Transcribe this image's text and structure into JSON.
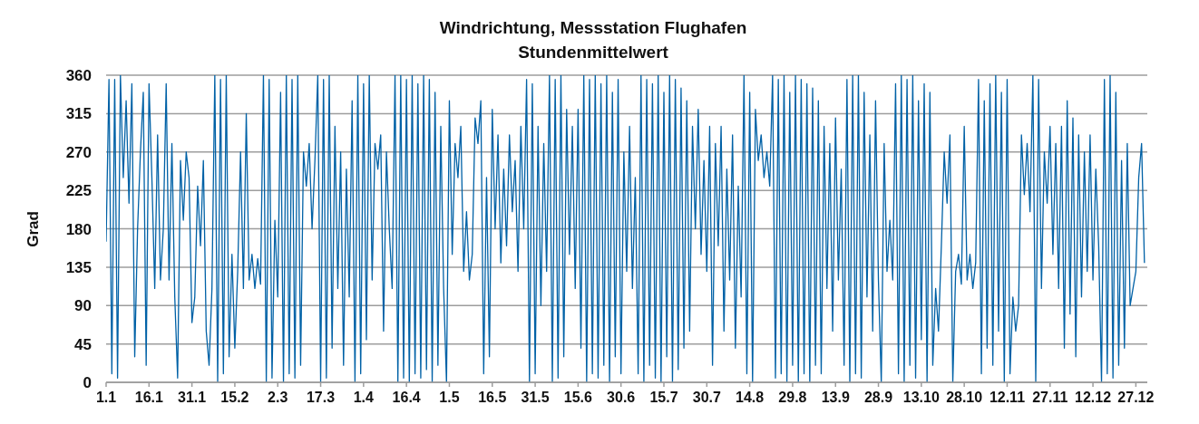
{
  "chart_data": {
    "type": "line",
    "title": "Windrichtung, Messstation Flughafen",
    "subtitle": "Stundenmittelwert",
    "ylabel": "Grad",
    "x": [
      "--01-01",
      "--01-02",
      "--01-03",
      "--01-04",
      "--01-05",
      "--01-06",
      "--01-07",
      "--01-08",
      "--01-09",
      "--01-10",
      "--01-11",
      "--01-12",
      "--01-13",
      "--01-14",
      "--01-15",
      "--01-16",
      "--01-17",
      "--01-18",
      "--01-19",
      "--01-20",
      "--01-21",
      "--01-22",
      "--01-23",
      "--01-24",
      "--01-25",
      "--01-26",
      "--01-27",
      "--01-28",
      "--01-29",
      "--01-30",
      "--01-31",
      "--02-01",
      "--02-02",
      "--02-03",
      "--02-04",
      "--02-05",
      "--02-06",
      "--02-07",
      "--02-08",
      "--02-09",
      "--02-10",
      "--02-11",
      "--02-12",
      "--02-13",
      "--02-14",
      "--02-15",
      "--02-16",
      "--02-17",
      "--02-18",
      "--02-19",
      "--02-20",
      "--02-21",
      "--02-22",
      "--02-23",
      "--02-24",
      "--02-25",
      "--02-26",
      "--02-27",
      "--02-28",
      "--03-01",
      "--03-02",
      "--03-03",
      "--03-04",
      "--03-05",
      "--03-06",
      "--03-07",
      "--03-08",
      "--03-09",
      "--03-10",
      "--03-11",
      "--03-12",
      "--03-13",
      "--03-14",
      "--03-15",
      "--03-16",
      "--03-17",
      "--03-18",
      "--03-19",
      "--03-20",
      "--03-21",
      "--03-22",
      "--03-23",
      "--03-24",
      "--03-25",
      "--03-26",
      "--03-27",
      "--03-28",
      "--03-29",
      "--03-30",
      "--03-31",
      "--04-01",
      "--04-02",
      "--04-03",
      "--04-04",
      "--04-05",
      "--04-06",
      "--04-07",
      "--04-08",
      "--04-09",
      "--04-10",
      "--04-11",
      "--04-12",
      "--04-13",
      "--04-14",
      "--04-15",
      "--04-16",
      "--04-17",
      "--04-18",
      "--04-19",
      "--04-20",
      "--04-21",
      "--04-22",
      "--04-23",
      "--04-24",
      "--04-25",
      "--04-26",
      "--04-27",
      "--04-28",
      "--04-29",
      "--04-30",
      "--05-01",
      "--05-02",
      "--05-03",
      "--05-04",
      "--05-05",
      "--05-06",
      "--05-07",
      "--05-08",
      "--05-09",
      "--05-10",
      "--05-11",
      "--05-12",
      "--05-13",
      "--05-14",
      "--05-15",
      "--05-16",
      "--05-17",
      "--05-18",
      "--05-19",
      "--05-20",
      "--05-21",
      "--05-22",
      "--05-23",
      "--05-24",
      "--05-25",
      "--05-26",
      "--05-27",
      "--05-28",
      "--05-29",
      "--05-30",
      "--05-31",
      "--06-01",
      "--06-02",
      "--06-03",
      "--06-04",
      "--06-05",
      "--06-06",
      "--06-07",
      "--06-08",
      "--06-09",
      "--06-10",
      "--06-11",
      "--06-12",
      "--06-13",
      "--06-14",
      "--06-15",
      "--06-16",
      "--06-17",
      "--06-18",
      "--06-19",
      "--06-20",
      "--06-21",
      "--06-22",
      "--06-23",
      "--06-24",
      "--06-25",
      "--06-26",
      "--06-27",
      "--06-28",
      "--06-29",
      "--06-30",
      "--07-01",
      "--07-02",
      "--07-03",
      "--07-04",
      "--07-05",
      "--07-06",
      "--07-07",
      "--07-08",
      "--07-09",
      "--07-10",
      "--07-11",
      "--07-12",
      "--07-13",
      "--07-14",
      "--07-15",
      "--07-16",
      "--07-17",
      "--07-18",
      "--07-19",
      "--07-20",
      "--07-21",
      "--07-22",
      "--07-23",
      "--07-24",
      "--07-25",
      "--07-26",
      "--07-27",
      "--07-28",
      "--07-29",
      "--07-30",
      "--07-31",
      "--08-01",
      "--08-02",
      "--08-03",
      "--08-04",
      "--08-05",
      "--08-06",
      "--08-07",
      "--08-08",
      "--08-09",
      "--08-10",
      "--08-11",
      "--08-12",
      "--08-13",
      "--08-14",
      "--08-15",
      "--08-16",
      "--08-17",
      "--08-18",
      "--08-19",
      "--08-20",
      "--08-21",
      "--08-22",
      "--08-23",
      "--08-24",
      "--08-25",
      "--08-26",
      "--08-27",
      "--08-28",
      "--08-29",
      "--08-30",
      "--08-31",
      "--09-01",
      "--09-02",
      "--09-03",
      "--09-04",
      "--09-05",
      "--09-06",
      "--09-07",
      "--09-08",
      "--09-09",
      "--09-10",
      "--09-11",
      "--09-12",
      "--09-13",
      "--09-14",
      "--09-15",
      "--09-16",
      "--09-17",
      "--09-18",
      "--09-19",
      "--09-20",
      "--09-21",
      "--09-22",
      "--09-23",
      "--09-24",
      "--09-25",
      "--09-26",
      "--09-27",
      "--09-28",
      "--09-29",
      "--09-30",
      "--10-01",
      "--10-02",
      "--10-03",
      "--10-04",
      "--10-05",
      "--10-06",
      "--10-07",
      "--10-08",
      "--10-09",
      "--10-10",
      "--10-11",
      "--10-12",
      "--10-13",
      "--10-14",
      "--10-15",
      "--10-16",
      "--10-17",
      "--10-18",
      "--10-19",
      "--10-20",
      "--10-21",
      "--10-22",
      "--10-23",
      "--10-24",
      "--10-25",
      "--10-26",
      "--10-27",
      "--10-28",
      "--10-29",
      "--10-30",
      "--10-31",
      "--11-01",
      "--11-02",
      "--11-03",
      "--11-04",
      "--11-05",
      "--11-06",
      "--11-07",
      "--11-08",
      "--11-09",
      "--11-10",
      "--11-11",
      "--11-12",
      "--11-13",
      "--11-14",
      "--11-15",
      "--11-16",
      "--11-17",
      "--11-18",
      "--11-19",
      "--11-20",
      "--11-21",
      "--11-22",
      "--11-23",
      "--11-24",
      "--11-25",
      "--11-26",
      "--11-27",
      "--11-28",
      "--11-29",
      "--11-30",
      "--12-01",
      "--12-02",
      "--12-03",
      "--12-04",
      "--12-05",
      "--12-06",
      "--12-07",
      "--12-08",
      "--12-09",
      "--12-10",
      "--12-11",
      "--12-12",
      "--12-13",
      "--12-14",
      "--12-15",
      "--12-16",
      "--12-17",
      "--12-18",
      "--12-19",
      "--12-20",
      "--12-21",
      "--12-22",
      "--12-23",
      "--12-24",
      "--12-25",
      "--12-26",
      "--12-27",
      "--12-28",
      "--12-29",
      "--12-30"
    ],
    "color": "#0061a6",
    "values": [
      165,
      355,
      10,
      355,
      5,
      360,
      240,
      330,
      210,
      350,
      30,
      180,
      270,
      340,
      20,
      350,
      240,
      110,
      290,
      120,
      180,
      350,
      120,
      280,
      100,
      5,
      260,
      190,
      270,
      240,
      70,
      100,
      230,
      160,
      260,
      60,
      20,
      110,
      360,
      0,
      355,
      10,
      360,
      30,
      150,
      40,
      130,
      270,
      110,
      315,
      120,
      150,
      110,
      145,
      115,
      360,
      0,
      355,
      5,
      190,
      100,
      340,
      0,
      360,
      10,
      355,
      5,
      360,
      20,
      270,
      230,
      280,
      180,
      260,
      360,
      0,
      355,
      5,
      360,
      40,
      300,
      110,
      270,
      20,
      250,
      100,
      330,
      0,
      360,
      10,
      350,
      50,
      360,
      120,
      280,
      250,
      290,
      60,
      270,
      180,
      110,
      360,
      0,
      360,
      5,
      355,
      0,
      360,
      10,
      350,
      5,
      360,
      15,
      355,
      0,
      340,
      20,
      300,
      110,
      0,
      330,
      150,
      280,
      240,
      300,
      130,
      200,
      120,
      150,
      310,
      280,
      330,
      10,
      240,
      30,
      320,
      180,
      290,
      140,
      250,
      160,
      290,
      200,
      260,
      130,
      300,
      180,
      355,
      0,
      350,
      10,
      300,
      90,
      280,
      130,
      360,
      0,
      355,
      5,
      360,
      30,
      320,
      150,
      300,
      110,
      320,
      40,
      360,
      0,
      355,
      10,
      360,
      5,
      350,
      20,
      360,
      0,
      340,
      30,
      355,
      10,
      270,
      130,
      300,
      110,
      240,
      10,
      360,
      0,
      355,
      20,
      350,
      5,
      360,
      0,
      340,
      30,
      360,
      0,
      355,
      15,
      345,
      40,
      330,
      60,
      300,
      180,
      320,
      150,
      260,
      130,
      300,
      20,
      280,
      160,
      300,
      60,
      250,
      120,
      290,
      40,
      230,
      100,
      360,
      10,
      340,
      0,
      320,
      260,
      290,
      240,
      270,
      230,
      360,
      5,
      355,
      10,
      360,
      0,
      340,
      20,
      360,
      0,
      355,
      10,
      350,
      0,
      345,
      20,
      330,
      10,
      300,
      110,
      280,
      60,
      310,
      120,
      250,
      20,
      355,
      0,
      360,
      10,
      360,
      5,
      340,
      100,
      290,
      60,
      330,
      120,
      0,
      280,
      130,
      190,
      120,
      350,
      10,
      360,
      0,
      355,
      20,
      360,
      5,
      330,
      50,
      350,
      0,
      340,
      20,
      110,
      60,
      160,
      270,
      210,
      290,
      0,
      130,
      150,
      115,
      300,
      120,
      150,
      110,
      140,
      355,
      10,
      330,
      40,
      350,
      20,
      360,
      60,
      340,
      0,
      355,
      10,
      100,
      60,
      90,
      290,
      220,
      280,
      200,
      360,
      0,
      355,
      110,
      270,
      210,
      300,
      150,
      280,
      110,
      300,
      40,
      330,
      80,
      310,
      30,
      290,
      100,
      270,
      130,
      290,
      120,
      250,
      160,
      0,
      355,
      10,
      360,
      5,
      340,
      20,
      260,
      40,
      280,
      90,
      110,
      130,
      240,
      280,
      140
    ],
    "xlim": [
      "--01-01",
      "--12-31"
    ],
    "xticks": [
      {
        "value": "--01-01",
        "label": "1.1"
      },
      {
        "value": "--01-16",
        "label": "16.1"
      },
      {
        "value": "--01-31",
        "label": "31.1"
      },
      {
        "value": "--02-15",
        "label": "15.2"
      },
      {
        "value": "--03-02",
        "label": "2.3"
      },
      {
        "value": "--03-17",
        "label": "17.3"
      },
      {
        "value": "--04-01",
        "label": "1.4"
      },
      {
        "value": "--04-16",
        "label": "16.4"
      },
      {
        "value": "--05-01",
        "label": "1.5"
      },
      {
        "value": "--05-16",
        "label": "16.5"
      },
      {
        "value": "--05-31",
        "label": "31.5"
      },
      {
        "value": "--06-15",
        "label": "15.6"
      },
      {
        "value": "--06-30",
        "label": "30.6"
      },
      {
        "value": "--07-15",
        "label": "15.7"
      },
      {
        "value": "--07-30",
        "label": "30.7"
      },
      {
        "value": "--08-14",
        "label": "14.8"
      },
      {
        "value": "--08-29",
        "label": "29.8"
      },
      {
        "value": "--09-13",
        "label": "13.9"
      },
      {
        "value": "--09-28",
        "label": "28.9"
      },
      {
        "value": "--10-13",
        "label": "13.10"
      },
      {
        "value": "--10-28",
        "label": "28.10"
      },
      {
        "value": "--11-12",
        "label": "12.11"
      },
      {
        "value": "--11-27",
        "label": "27.11"
      },
      {
        "value": "--12-12",
        "label": "12.12"
      },
      {
        "value": "--12-27",
        "label": "27.12"
      }
    ],
    "ylim": [
      0,
      360
    ],
    "yticks": [
      0,
      45,
      90,
      135,
      180,
      225,
      270,
      315,
      360
    ],
    "grid": "y"
  }
}
